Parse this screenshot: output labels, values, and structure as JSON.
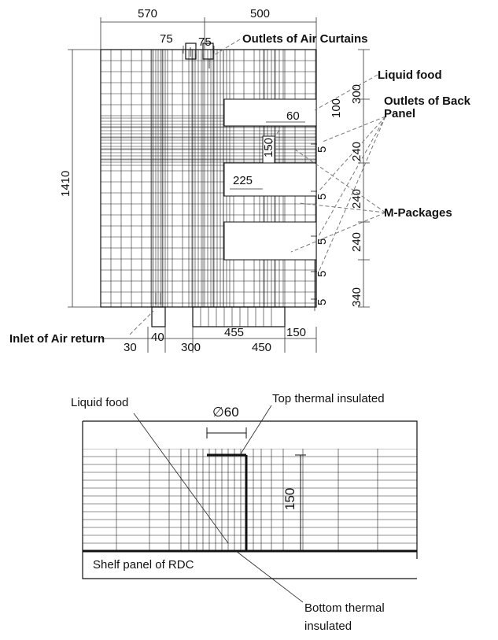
{
  "top_diagram": {
    "dimensions": {
      "width_left": "570",
      "width_right": "500",
      "curtain_left": "75",
      "curtain_right": "75",
      "height": "1410",
      "top_gap": "300",
      "shelf_thickness": "100",
      "food_diameter": "60",
      "food_height": "150",
      "food_offset": "225",
      "spacing_1": "240",
      "spacing_2": "240",
      "spacing_3": "240",
      "bottom_gap": "340",
      "return_width": "455",
      "return_right": "150",
      "inlet_offset": "30",
      "inlet_width": "40",
      "inlet_gap": "300",
      "bottom_right": "450"
    },
    "outlet_gaps": [
      "5",
      "5",
      "5",
      "5",
      "5"
    ],
    "annotations": {
      "outlets_air_curtains": "Outlets of Air Curtains",
      "liquid_food": "Liquid food",
      "outlets_back_panel": [
        "Outlets of Back",
        "Panel"
      ],
      "m_packages": "M-Packages",
      "inlet_air_return": "Inlet of Air return"
    }
  },
  "bottom_diagram": {
    "liquid_food": "Liquid food",
    "top_insulated": "Top thermal insulated",
    "diameter": "∅60",
    "height": "150",
    "shelf_panel": "Shelf panel of RDC",
    "bottom_insulated": [
      "Bottom thermal",
      "insulated"
    ]
  }
}
